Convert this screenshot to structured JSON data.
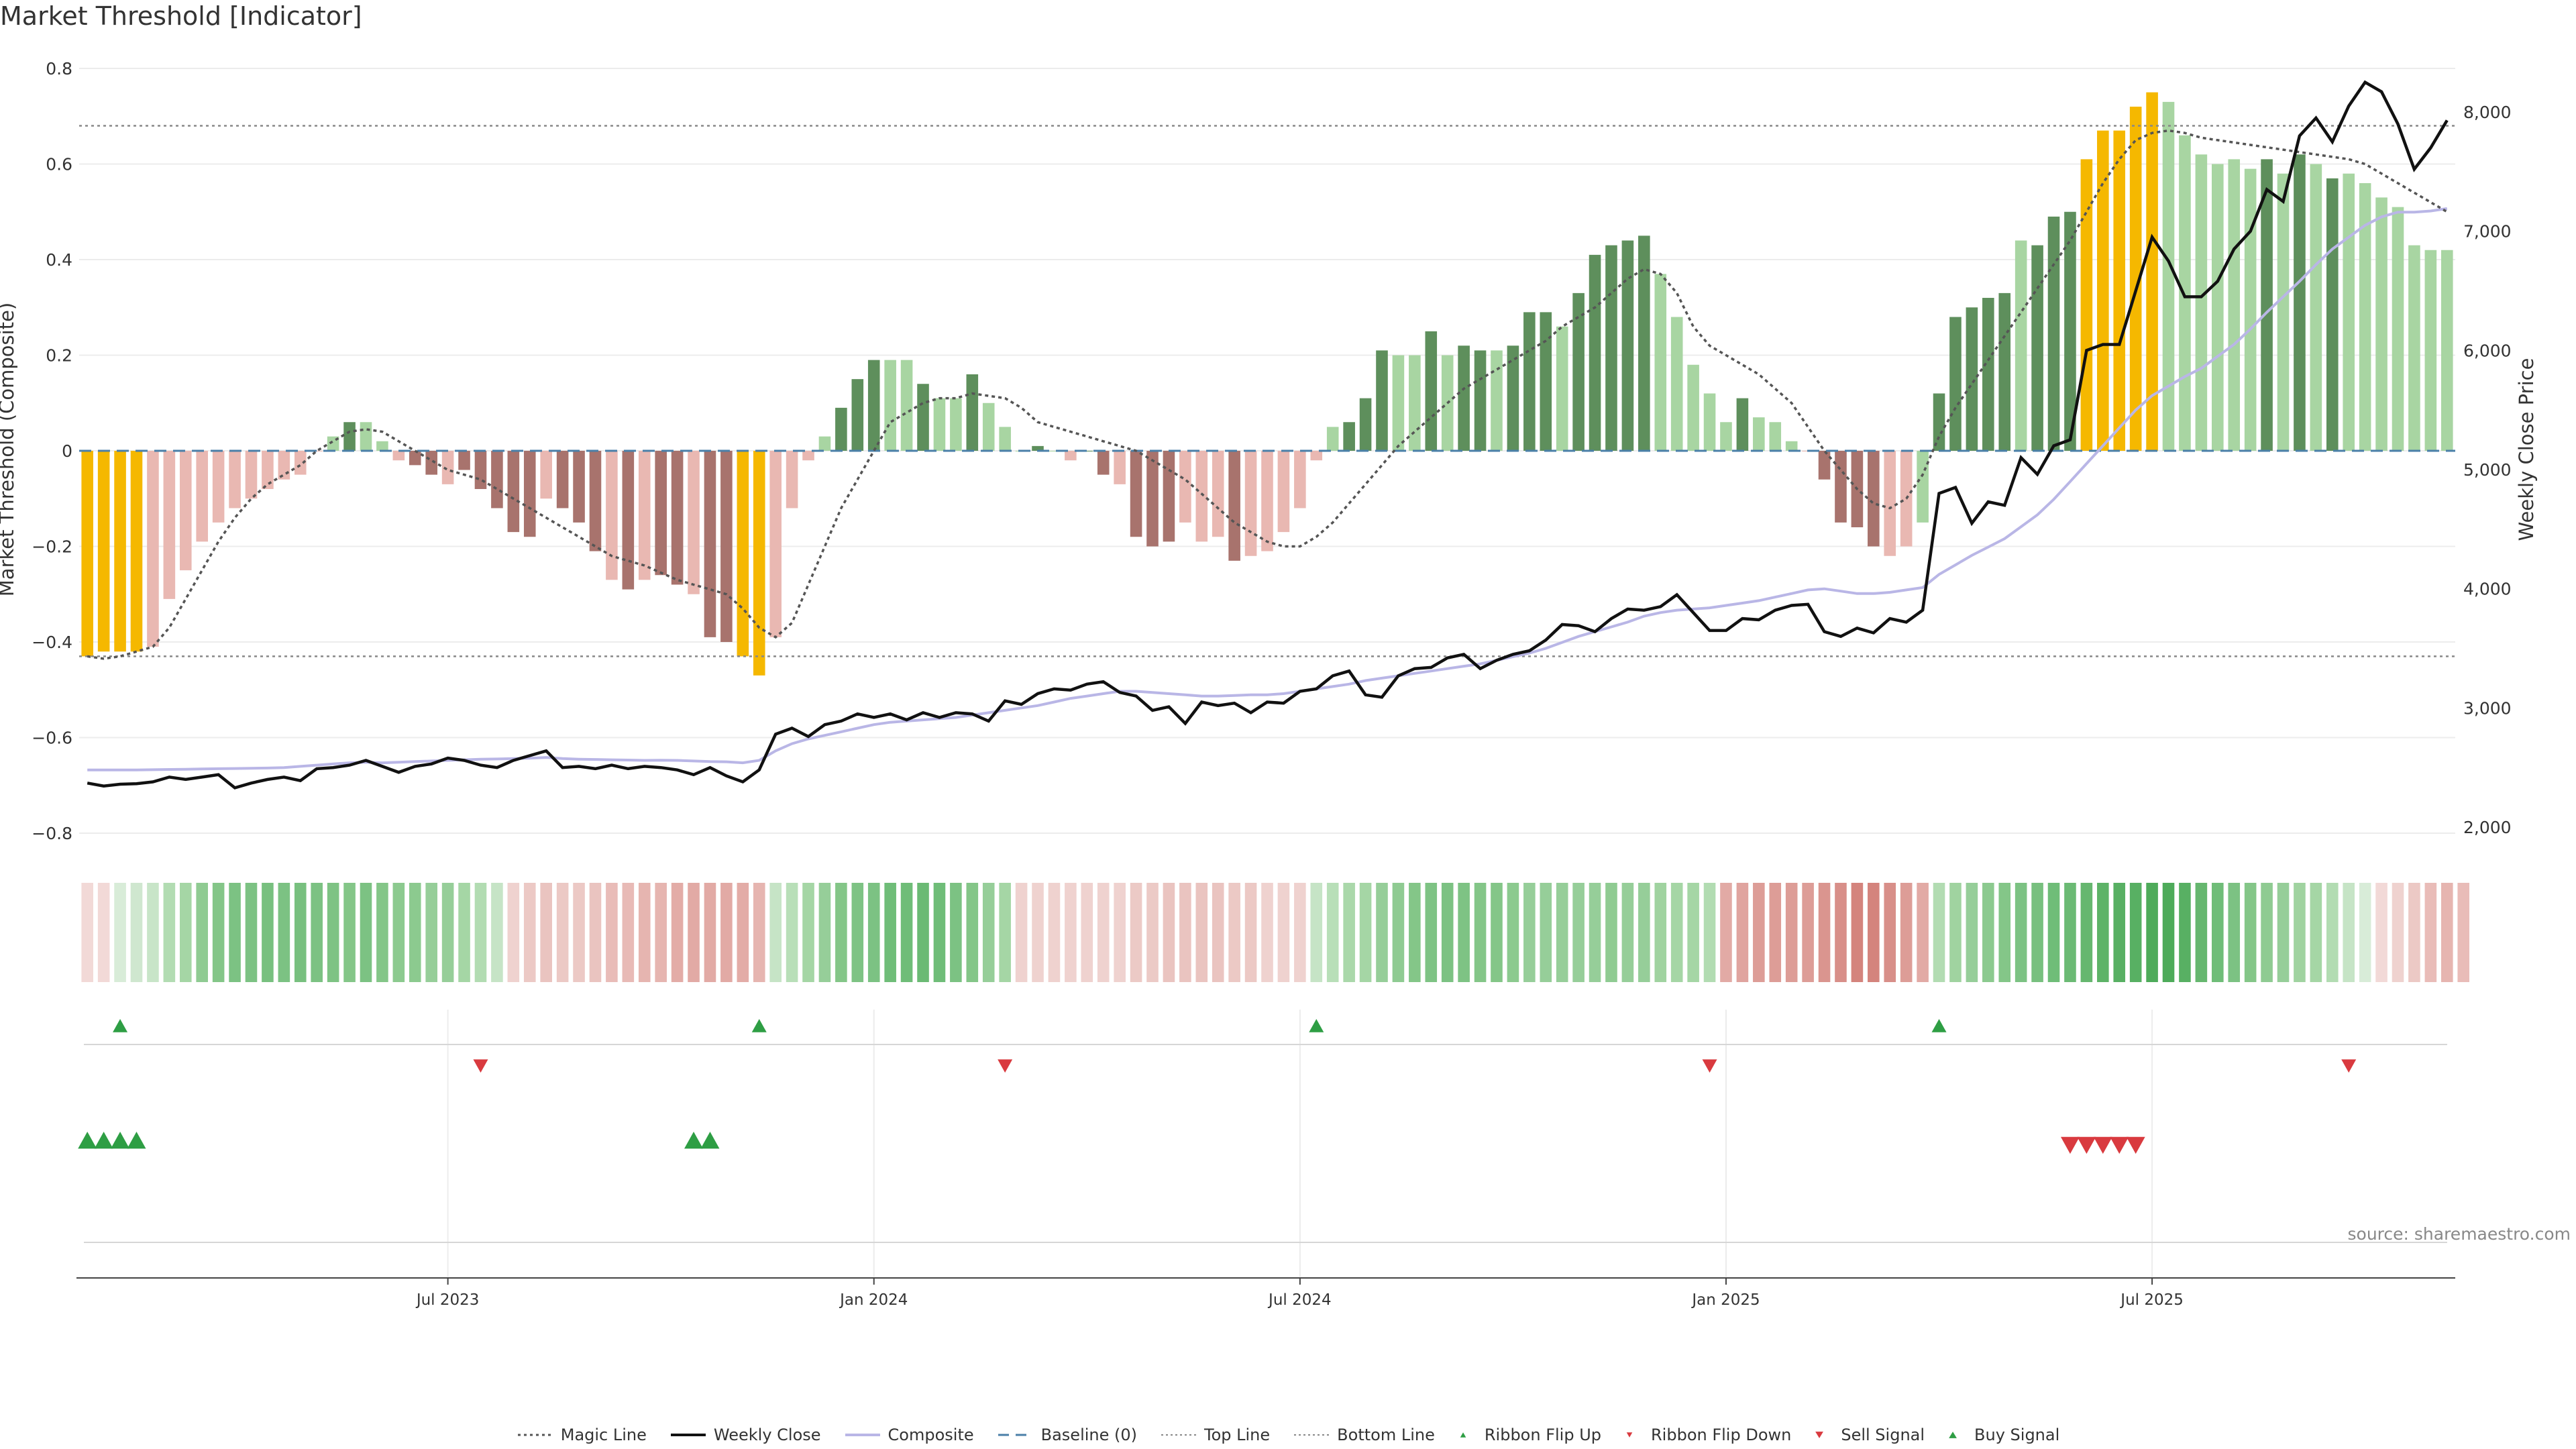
{
  "title": "Market Threshold [Indicator]",
  "source": "source: sharemaestro.com",
  "colors": {
    "yellow": "#f5b800",
    "dark_green": "#5e8f5c",
    "light_green": "#a8d5a2",
    "dark_red": "#a8736d",
    "light_red": "#e9b8b2",
    "black": "#111111",
    "composite": "#b9b6e6",
    "baseline": "#4a7fa8",
    "threshold": "#555555",
    "signal_green": "#2e9e44",
    "signal_red": "#d93a3f"
  },
  "chart_data": {
    "type": "bar",
    "title": "Market Threshold [Indicator]",
    "ylabel": "Market Threshold (Composite)",
    "y2label": "Weekly Close Price",
    "ylim": [
      -0.8,
      0.8
    ],
    "y2lim": [
      2000,
      8000
    ],
    "yticks": [
      "0.8",
      "0.6",
      "0.4",
      "0.2",
      "0",
      "−0.2",
      "−0.4",
      "−0.6",
      "−0.8"
    ],
    "y2ticks": [
      "8,000",
      "7,000",
      "6,000",
      "5,000",
      "4,000",
      "3,000",
      "2,000"
    ],
    "xticks": [
      "Jul 2023",
      "Jan 2024",
      "Jul 2024",
      "Jan 2025",
      "Jul 2025"
    ],
    "xtick_weeks": [
      22,
      48,
      74,
      100,
      126
    ],
    "top_line": 0.68,
    "bottom_line": -0.43,
    "bars": [
      -0.43,
      -0.42,
      -0.42,
      -0.42,
      -0.41,
      -0.31,
      -0.25,
      -0.19,
      -0.15,
      -0.12,
      -0.1,
      -0.08,
      -0.06,
      -0.05,
      0,
      0.03,
      0.06,
      0.06,
      0.02,
      -0.02,
      -0.03,
      -0.05,
      -0.07,
      -0.04,
      -0.08,
      -0.12,
      -0.17,
      -0.18,
      -0.1,
      -0.12,
      -0.15,
      -0.21,
      -0.27,
      -0.29,
      -0.27,
      -0.26,
      -0.28,
      -0.3,
      -0.39,
      -0.4,
      -0.43,
      -0.47,
      -0.39,
      -0.12,
      -0.02,
      0.03,
      0.09,
      0.15,
      0.19,
      0.19,
      0.19,
      0.14,
      0.11,
      0.11,
      0.16,
      0.1,
      0.05,
      0,
      0.01,
      0,
      -0.02,
      0,
      -0.05,
      -0.07,
      -0.18,
      -0.2,
      -0.19,
      -0.15,
      -0.19,
      -0.18,
      -0.23,
      -0.22,
      -0.21,
      -0.17,
      -0.12,
      -0.02,
      0.05,
      0.06,
      0.11,
      0.21,
      0.2,
      0.2,
      0.25,
      0.2,
      0.22,
      0.21,
      0.21,
      0.22,
      0.29,
      0.29,
      0.26,
      0.33,
      0.41,
      0.43,
      0.44,
      0.45,
      0.37,
      0.28,
      0.18,
      0.12,
      0.06,
      0.11,
      0.07,
      0.06,
      0.02,
      0,
      -0.06,
      -0.15,
      -0.16,
      -0.2,
      -0.22,
      -0.2,
      -0.15,
      0.12,
      0.28,
      0.3,
      0.32,
      0.33,
      0.44,
      0.43,
      0.49,
      0.5,
      0.61,
      0.67,
      0.67,
      0.72,
      0.75,
      0.73,
      0.66,
      0.62,
      0.6,
      0.61,
      0.59,
      0.61,
      0.58,
      0.62,
      0.6,
      0.57,
      0.58,
      0.56,
      0.53,
      0.51,
      0.43,
      0.42,
      0.42
    ],
    "bar_colors": [
      "Y",
      "Y",
      "Y",
      "Y",
      "LR",
      "LR",
      "LR",
      "LR",
      "LR",
      "LR",
      "LR",
      "LR",
      "LR",
      "LR",
      "LR",
      "LG",
      "DG",
      "LG",
      "LG",
      "LR",
      "DR",
      "DR",
      "LR",
      "DR",
      "DR",
      "DR",
      "DR",
      "DR",
      "LR",
      "DR",
      "DR",
      "DR",
      "LR",
      "DR",
      "LR",
      "DR",
      "DR",
      "LR",
      "DR",
      "DR",
      "Y",
      "Y",
      "LR",
      "LR",
      "LR",
      "LG",
      "DG",
      "DG",
      "DG",
      "LG",
      "LG",
      "DG",
      "LG",
      "LG",
      "DG",
      "LG",
      "LG",
      "LG",
      "DG",
      "LG",
      "LR",
      "DG",
      "DR",
      "LR",
      "DR",
      "DR",
      "DR",
      "LR",
      "LR",
      "LR",
      "DR",
      "LR",
      "LR",
      "LR",
      "LR",
      "LR",
      "LG",
      "DG",
      "DG",
      "DG",
      "LG",
      "LG",
      "DG",
      "LG",
      "DG",
      "DG",
      "LG",
      "DG",
      "DG",
      "DG",
      "LG",
      "DG",
      "DG",
      "DG",
      "DG",
      "DG",
      "LG",
      "LG",
      "LG",
      "LG",
      "LG",
      "DG",
      "LG",
      "LG",
      "LG",
      "LR",
      "DR",
      "DR",
      "DR",
      "DR",
      "LR",
      "LR",
      "LG",
      "DG",
      "DG",
      "DG",
      "DG",
      "DG",
      "LG",
      "DG",
      "DG",
      "DG",
      "Y",
      "Y",
      "Y",
      "Y",
      "Y",
      "LG",
      "LG",
      "LG",
      "LG",
      "LG",
      "LG",
      "DG",
      "LG",
      "DG",
      "LG",
      "DG",
      "LG",
      "LG",
      "LG",
      "LG",
      "LG",
      "LG",
      "LG"
    ],
    "weekly_close": [
      2370,
      2345,
      2360,
      2365,
      2380,
      2420,
      2400,
      2420,
      2440,
      2330,
      2370,
      2400,
      2420,
      2390,
      2490,
      2500,
      2520,
      2560,
      2510,
      2460,
      2510,
      2530,
      2580,
      2560,
      2520,
      2500,
      2560,
      2600,
      2640,
      2500,
      2510,
      2490,
      2520,
      2490,
      2510,
      2500,
      2480,
      2440,
      2500,
      2430,
      2380,
      2480,
      2780,
      2830,
      2760,
      2860,
      2890,
      2950,
      2920,
      2950,
      2900,
      2960,
      2920,
      2960,
      2950,
      2890,
      3060,
      3030,
      3120,
      3160,
      3150,
      3200,
      3220,
      3130,
      3100,
      2980,
      3010,
      2870,
      3050,
      3020,
      3040,
      2960,
      3050,
      3040,
      3140,
      3160,
      3270,
      3310,
      3110,
      3090,
      3270,
      3330,
      3340,
      3420,
      3450,
      3330,
      3400,
      3450,
      3480,
      3570,
      3700,
      3690,
      3640,
      3750,
      3830,
      3820,
      3850,
      3950,
      3800,
      3650,
      3650,
      3750,
      3740,
      3820,
      3860,
      3870,
      3640,
      3600,
      3670,
      3630,
      3750,
      3720,
      3820,
      4800,
      4850,
      4550,
      4730,
      4700,
      5100,
      4960,
      5200,
      5250,
      6000,
      6050,
      6050,
      6500,
      6950,
      6750,
      6450,
      6450,
      6580,
      6850,
      7000,
      7350,
      7250,
      7800,
      7950,
      7750,
      8050,
      8250,
      8170,
      7900,
      7520,
      7700,
      7930
    ],
    "composite": [
      2480,
      2480,
      2480,
      2480,
      2482,
      2484,
      2486,
      2488,
      2490,
      2492,
      2494,
      2496,
      2500,
      2510,
      2520,
      2530,
      2540,
      2545,
      2540,
      2545,
      2550,
      2555,
      2560,
      2565,
      2570,
      2572,
      2575,
      2578,
      2585,
      2575,
      2570,
      2568,
      2565,
      2563,
      2560,
      2562,
      2560,
      2555,
      2550,
      2548,
      2540,
      2560,
      2640,
      2700,
      2740,
      2770,
      2800,
      2830,
      2860,
      2880,
      2890,
      2900,
      2910,
      2920,
      2940,
      2960,
      2980,
      3000,
      3020,
      3050,
      3080,
      3100,
      3120,
      3140,
      3140,
      3130,
      3120,
      3110,
      3100,
      3100,
      3105,
      3110,
      3110,
      3120,
      3140,
      3160,
      3180,
      3200,
      3230,
      3250,
      3270,
      3290,
      3310,
      3330,
      3350,
      3370,
      3400,
      3430,
      3460,
      3500,
      3550,
      3600,
      3640,
      3680,
      3720,
      3770,
      3800,
      3820,
      3830,
      3840,
      3860,
      3880,
      3900,
      3930,
      3960,
      3990,
      4000,
      3980,
      3960,
      3960,
      3970,
      3990,
      4010,
      4120,
      4200,
      4280,
      4350,
      4420,
      4520,
      4620,
      4750,
      4900,
      5050,
      5200,
      5350,
      5500,
      5620,
      5700,
      5780,
      5850,
      5950,
      6050,
      6180,
      6320,
      6450,
      6580,
      6720,
      6850,
      6950,
      7050,
      7120,
      7160,
      7160,
      7170,
      7190
    ],
    "magic_line": [
      -0.43,
      -0.435,
      -0.43,
      -0.42,
      -0.41,
      -0.37,
      -0.31,
      -0.25,
      -0.19,
      -0.14,
      -0.1,
      -0.07,
      -0.05,
      -0.03,
      0,
      0.02,
      0.04,
      0.045,
      0.04,
      0.02,
      0,
      -0.02,
      -0.04,
      -0.05,
      -0.06,
      -0.08,
      -0.1,
      -0.12,
      -0.14,
      -0.16,
      -0.18,
      -0.2,
      -0.22,
      -0.23,
      -0.24,
      -0.255,
      -0.27,
      -0.28,
      -0.29,
      -0.3,
      -0.33,
      -0.37,
      -0.39,
      -0.36,
      -0.28,
      -0.2,
      -0.12,
      -0.06,
      0,
      0.06,
      0.08,
      0.1,
      0.11,
      0.11,
      0.12,
      0.115,
      0.11,
      0.09,
      0.06,
      0.05,
      0.04,
      0.03,
      0.02,
      0.01,
      0,
      -0.02,
      -0.04,
      -0.06,
      -0.09,
      -0.12,
      -0.15,
      -0.17,
      -0.19,
      -0.2,
      -0.2,
      -0.18,
      -0.15,
      -0.11,
      -0.07,
      -0.03,
      0.01,
      0.04,
      0.07,
      0.1,
      0.13,
      0.15,
      0.17,
      0.19,
      0.21,
      0.23,
      0.26,
      0.28,
      0.3,
      0.33,
      0.36,
      0.38,
      0.37,
      0.33,
      0.26,
      0.22,
      0.2,
      0.18,
      0.16,
      0.13,
      0.1,
      0.05,
      0,
      -0.04,
      -0.08,
      -0.11,
      -0.12,
      -0.1,
      -0.05,
      0.03,
      0.09,
      0.14,
      0.19,
      0.24,
      0.29,
      0.34,
      0.39,
      0.44,
      0.5,
      0.56,
      0.61,
      0.65,
      0.665,
      0.67,
      0.665,
      0.655,
      0.65,
      0.645,
      0.64,
      0.635,
      0.63,
      0.625,
      0.62,
      0.615,
      0.61,
      0.6,
      0.58,
      0.56,
      0.54,
      0.52,
      0.5
    ],
    "ribbon": [
      "#f2d9d7",
      "#f2d9d7",
      "#d8ecd8",
      "#cfe7cf",
      "#c8e5c8",
      "#b2dcb2",
      "#a5d6a5",
      "#8fcb92",
      "#84c688",
      "#7cc283",
      "#7cc283",
      "#78c07f",
      "#7cc283",
      "#78c07f",
      "#7cc283",
      "#7ec384",
      "#84c688",
      "#7cc283",
      "#84c688",
      "#8cca8f",
      "#8cca8f",
      "#96ce99",
      "#96ce99",
      "#a5d6a5",
      "#b2dcb2",
      "#c6e4c6",
      "#efd2cf",
      "#ecc9c5",
      "#eac4c0",
      "#ecc9c5",
      "#ecc9c5",
      "#eac4c0",
      "#e9bcb8",
      "#e8bab6",
      "#e6b5b0",
      "#e6b5b0",
      "#e3aca7",
      "#e2aaa5",
      "#e2aaa5",
      "#e2aaa5",
      "#e3aca7",
      "#e6b5b0",
      "#c6e4c6",
      "#b8dfb8",
      "#a5d6a5",
      "#96ce99",
      "#84c688",
      "#7ec384",
      "#7cc283",
      "#6fbd78",
      "#6fbd78",
      "#6bba74",
      "#6fbd78",
      "#7cc283",
      "#84c688",
      "#96ce99",
      "#a5d6a5",
      "#efd2cf",
      "#efd2cf",
      "#efd2cf",
      "#efd2cf",
      "#efd2cf",
      "#efd2cf",
      "#efd2cf",
      "#eccac6",
      "#eccac6",
      "#eac4c0",
      "#eac4c0",
      "#eac4c0",
      "#eac4c0",
      "#ecc9c5",
      "#ecc9c5",
      "#efd2cf",
      "#efd2cf",
      "#efd2cf",
      "#c6e4c6",
      "#b8dfb8",
      "#aad8aa",
      "#a5d6a5",
      "#96ce99",
      "#8fcb92",
      "#84c688",
      "#7ec384",
      "#7cc283",
      "#7ec384",
      "#84c688",
      "#84c688",
      "#8cca8f",
      "#96ce99",
      "#96ce99",
      "#96ce99",
      "#96ce99",
      "#96ce99",
      "#8fcb92",
      "#96ce99",
      "#96ce99",
      "#a0d3a0",
      "#a5d6a5",
      "#a5d6a5",
      "#b2dcb2",
      "#e2aaa5",
      "#e0a49f",
      "#dd9d97",
      "#dd9d97",
      "#dd9d97",
      "#dd9d97",
      "#da958f",
      "#d88f89",
      "#d4847d",
      "#d4847d",
      "#d88f89",
      "#dd9d97",
      "#e2aaa5",
      "#b2dcb2",
      "#a0d3a0",
      "#96ce99",
      "#8cca8f",
      "#84c688",
      "#7cc283",
      "#78c07f",
      "#6fbd78",
      "#6bba74",
      "#66b76f",
      "#5db367",
      "#58b063",
      "#58b063",
      "#4eab5a",
      "#4eab5a",
      "#58b063",
      "#66b76f",
      "#6fbd78",
      "#7cc283",
      "#84c688",
      "#8fcb92",
      "#96ce99",
      "#a0d3a0",
      "#a5d6a5",
      "#b2dcb2",
      "#c6e4c6",
      "#d8ecd8",
      "#f2d9d7",
      "#efd2cf",
      "#ecc9c5",
      "#e9bcb8",
      "#e6b5b0",
      "#e9bcb8"
    ],
    "ribbon_flip_up_weeks": [
      2,
      41,
      75,
      113
    ],
    "ribbon_flip_down_weeks": [
      24,
      56,
      99,
      138
    ],
    "buy_signal_weeks": [
      0,
      1,
      2,
      3,
      37,
      38
    ],
    "sell_signal_weeks": [
      121,
      122,
      123,
      124,
      125
    ]
  },
  "legend": [
    {
      "label": "Magic Line",
      "swatch": "dotted-dark"
    },
    {
      "label": "Weekly Close",
      "swatch": "solid-black"
    },
    {
      "label": "Composite",
      "swatch": "solid-lavender"
    },
    {
      "label": "Baseline (0)",
      "swatch": "dashed-blue"
    },
    {
      "label": "Top Line",
      "swatch": "dotted-grey"
    },
    {
      "label": "Bottom Line",
      "swatch": "dotted-grey"
    },
    {
      "label": "Ribbon Flip Up",
      "swatch": "triangle-up-small"
    },
    {
      "label": "Ribbon Flip Down",
      "swatch": "triangle-down-small"
    },
    {
      "label": "Sell Signal",
      "swatch": "triangle-down-large"
    },
    {
      "label": "Buy Signal",
      "swatch": "triangle-up-large"
    }
  ]
}
